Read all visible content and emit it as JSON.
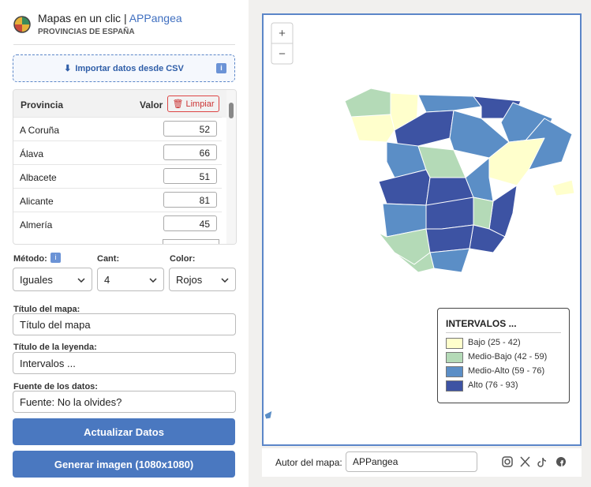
{
  "header": {
    "title": "Mapas en un clic |",
    "brand": "APPangea",
    "subtitle": "PROVINCIAS DE ESPAÑA"
  },
  "import_button": "Importar datos desde CSV",
  "table": {
    "columns": [
      "Provincia",
      "Valor"
    ],
    "clear_button": "Limpiar",
    "rows": [
      [
        "A Coruña",
        52
      ],
      [
        "Álava",
        66
      ],
      [
        "Albacete",
        51
      ],
      [
        "Alicante",
        81
      ],
      [
        "Almería",
        45
      ]
    ]
  },
  "controls": {
    "method": {
      "label": "Método:",
      "value": "Iguales"
    },
    "count": {
      "label": "Cant:",
      "value": "4"
    },
    "color": {
      "label": "Color:",
      "value": "Rojos"
    }
  },
  "fields": [
    {
      "label": "Título del mapa:",
      "value": "Título del mapa"
    },
    {
      "label": "Título de la leyenda:",
      "value": "Intervalos ..."
    },
    {
      "label": "Fuente de los datos:",
      "value": "Fuente: No la olvides?"
    }
  ],
  "buttons": [
    "Actualizar Datos",
    "Generar imagen (1080x1080)"
  ],
  "map": {
    "zoom": [
      "+",
      "−"
    ],
    "legend": {
      "title": "INTERVALOS ...",
      "items": [
        {
          "label": "Bajo (25 - 42)",
          "color": "#ffffcc"
        },
        {
          "label": "Medio-Bajo (42 - 59)",
          "color": "#b4dab7"
        },
        {
          "label": "Medio-Alto (59 - 76)",
          "color": "#5b8ec6"
        },
        {
          "label": "Alto (76 - 93)",
          "color": "#3d53a3"
        }
      ]
    }
  },
  "footer": {
    "author_label": "Autor del mapa:",
    "author": "APPangea"
  }
}
